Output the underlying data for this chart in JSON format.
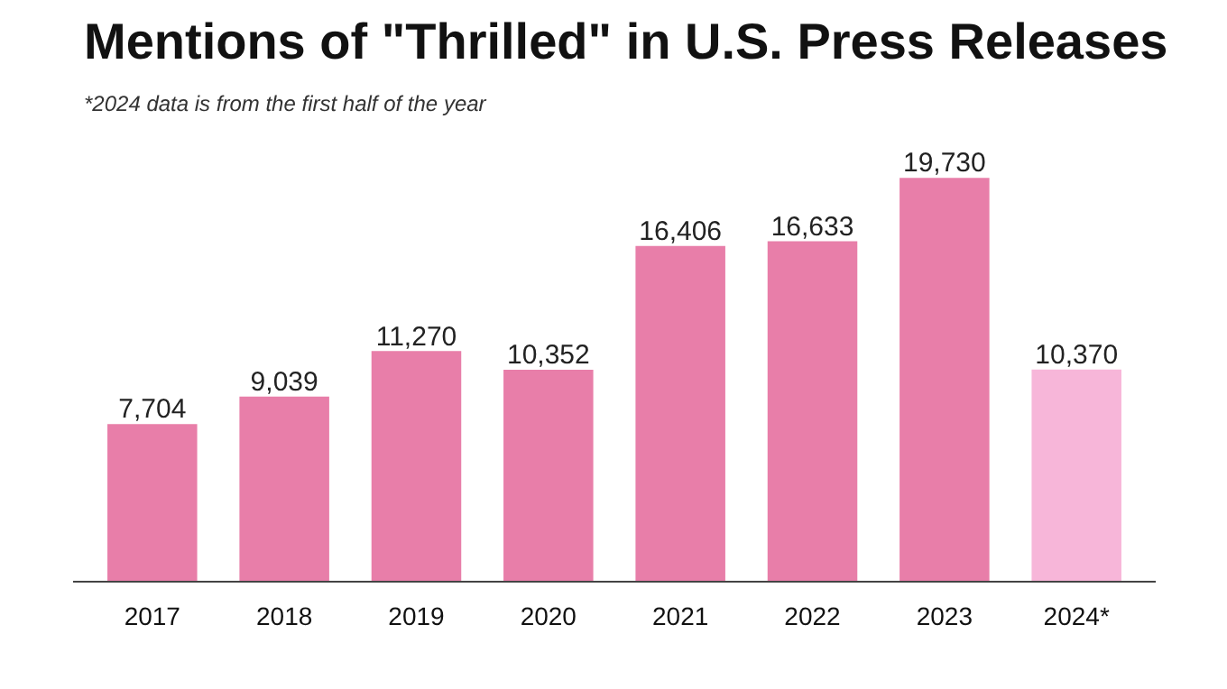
{
  "chart_data": {
    "type": "bar",
    "title": "Mentions of \"Thrilled\" in U.S. Press Releases",
    "subtitle": "*2024 data is from the first half of the year",
    "categories": [
      "2017",
      "2018",
      "2019",
      "2020",
      "2021",
      "2022",
      "2023",
      "2024*"
    ],
    "values": [
      7704,
      9039,
      11270,
      10352,
      16406,
      16633,
      19730,
      10370
    ],
    "colors": [
      "#e87ea9",
      "#e87ea9",
      "#e87ea9",
      "#e87ea9",
      "#e87ea9",
      "#e87ea9",
      "#e87ea9",
      "#f7b6d9"
    ],
    "value_labels": [
      "7,704",
      "9,039",
      "11,270",
      "10,352",
      "16,406",
      "16,633",
      "19,730",
      "10,370"
    ],
    "grid": false
  }
}
